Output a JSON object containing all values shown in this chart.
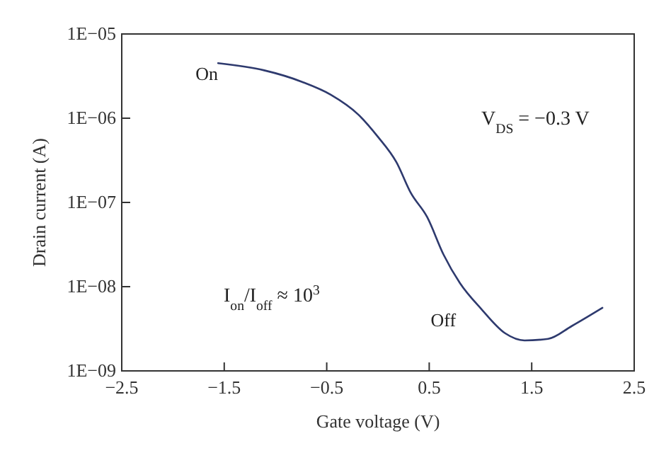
{
  "chart_data": {
    "type": "line",
    "xlabel": "Gate voltage (V)",
    "ylabel": "Drain current (A)",
    "log": "y",
    "xlim": [
      -2.5,
      2.5
    ],
    "xticks": [
      {
        "value": -2.5,
        "label": "−2.5"
      },
      {
        "value": -1.5,
        "label": "−1.5"
      },
      {
        "value": -0.5,
        "label": "−0.5"
      },
      0.5,
      1.5,
      2.5
    ],
    "ylim": [
      1e-09,
      1e-05
    ],
    "yticks": [
      {
        "value": 1e-09,
        "label": "1E−09"
      },
      {
        "value": 1e-08,
        "label": "1E−08"
      },
      {
        "value": 1e-07,
        "label": "1E−07"
      },
      {
        "value": 1e-06,
        "label": "1E−06"
      },
      {
        "value": 1e-05,
        "label": "1E−05"
      }
    ],
    "grid": false,
    "marker": "none",
    "line_style": "solid",
    "x": [
      -1.56,
      -1.11,
      -0.74,
      -0.46,
      -0.19,
      0.0,
      0.18,
      0.32,
      0.48,
      0.64,
      0.8,
      1.01,
      1.24,
      1.43,
      1.66,
      1.89,
      2.19
    ],
    "series": [
      {
        "color": "#2e3a6e",
        "values": [
          4.5e-06,
          3.7e-06,
          2.7e-06,
          1.9e-06,
          1.1e-06,
          6e-07,
          3e-07,
          1.3e-07,
          6.7e-08,
          2.4e-08,
          1.1e-08,
          5.4e-09,
          2.8e-09,
          2.3e-09,
          2.4e-09,
          3.4e-09,
          5.6e-09
        ]
      }
    ],
    "annotations": [
      {
        "text": "On",
        "x": -1.56,
        "y": 4.5e-06
      },
      {
        "text": "Off",
        "x": 1.01,
        "y": 5.4e-09
      },
      "V$_{DS}$ = −0.3 V",
      "I$_{on}$/I$_{off}$ ≈ 10$^{3}$"
    ]
  }
}
